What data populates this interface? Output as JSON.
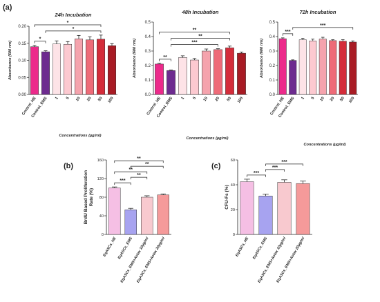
{
  "panel_labels": {
    "a": "(a)",
    "b": "(b)",
    "c": "(c)"
  },
  "chart_data": [
    {
      "type": "bar",
      "title": "24h Incubation",
      "xlabel": "Concentrations (µg/ml)",
      "ylabel": "Absorbance (600 nm)",
      "ylim": [
        0,
        0.2
      ],
      "yticks": [
        "0.00",
        "0.05",
        "0.10",
        "0.15",
        "0.20"
      ],
      "categories": [
        "Control_HE",
        "Control_EMS",
        "1",
        "5",
        "10",
        "20",
        "50",
        "100"
      ],
      "values": [
        0.14,
        0.125,
        0.148,
        0.147,
        0.163,
        0.16,
        0.162,
        0.143
      ],
      "errors": [
        0.004,
        0.003,
        0.009,
        0.008,
        0.01,
        0.009,
        0.012,
        0.006
      ],
      "colors": [
        "#ec2a8b",
        "#6d2b8f",
        "#fde3e7",
        "#fcc9d0",
        "#f5a3ad",
        "#ee6b78",
        "#d42c3a",
        "#a81b24"
      ],
      "significance": [
        {
          "from": "Control_HE",
          "to": "Control_EMS",
          "label": "*"
        },
        {
          "from": "Control_HE",
          "to": "50",
          "label": "*"
        },
        {
          "from": "Control_EMS",
          "to": "50",
          "label": "*"
        }
      ]
    },
    {
      "type": "bar",
      "title": "48h Incubation",
      "xlabel": "Concentrations (µg/ml)",
      "ylabel": "Absorbance (600 nm)",
      "ylim": [
        0,
        0.5
      ],
      "yticks": [
        "0.0",
        "0.1",
        "0.2",
        "0.3",
        "0.4",
        "0.5"
      ],
      "categories": [
        "Control_HE",
        "Control_EMS",
        "1",
        "5",
        "10",
        "20",
        "50",
        "100"
      ],
      "values": [
        0.21,
        0.165,
        0.255,
        0.238,
        0.3,
        0.31,
        0.322,
        0.285
      ],
      "errors": [
        0.005,
        0.004,
        0.012,
        0.01,
        0.014,
        0.006,
        0.012,
        0.008
      ],
      "colors": [
        "#ec2a8b",
        "#6d2b8f",
        "#fde3e7",
        "#fcc9d0",
        "#f5a3ad",
        "#ee6b78",
        "#d42c3a",
        "#a81b24"
      ],
      "significance": [
        {
          "from": "Control_HE",
          "to": "Control_EMS",
          "label": "**"
        },
        {
          "from": "Control_HE",
          "to": "50",
          "label": "**"
        },
        {
          "from": "Control_EMS",
          "to": "50",
          "label": "**"
        },
        {
          "from": "Control_EMS",
          "to": "20",
          "label": "***"
        }
      ]
    },
    {
      "type": "bar",
      "title": "72h Incubation",
      "xlabel": "Concentrations (µg/ml)",
      "ylabel": "Absorbance (600 nm)",
      "ylim": [
        0,
        0.5
      ],
      "yticks": [
        "0.0",
        "0.1",
        "0.2",
        "0.3",
        "0.4",
        "0.5"
      ],
      "categories": [
        "Control_HE",
        "Control_EMS",
        "1",
        "5",
        "10",
        "20",
        "50",
        "100"
      ],
      "values": [
        0.385,
        0.235,
        0.378,
        0.37,
        0.383,
        0.372,
        0.368,
        0.362
      ],
      "errors": [
        0.006,
        0.004,
        0.01,
        0.012,
        0.012,
        0.006,
        0.01,
        0.008
      ],
      "colors": [
        "#ec2a8b",
        "#6d2b8f",
        "#fde3e7",
        "#fcc9d0",
        "#f5a3ad",
        "#ee6b78",
        "#d42c3a",
        "#a81b24"
      ],
      "significance": [
        {
          "from": "Control_HE",
          "to": "Control_EMS",
          "label": "***"
        },
        {
          "from": "Control_EMS",
          "to": "100",
          "label": "***"
        }
      ]
    },
    {
      "type": "bar",
      "title": "",
      "xlabel": "",
      "ylabel": "BrdU Based Proliferation Rate (%)",
      "ylim": [
        0,
        160
      ],
      "yticks": [
        "0",
        "40",
        "80",
        "120",
        "160"
      ],
      "categories": [
        "EqASCs_HE",
        "EqASCs_EMS",
        "EqASCs_EMS+Astax 10µg/ml",
        "EqASCs_EMS+Astax 20µg/ml"
      ],
      "values": [
        100,
        53,
        80,
        85
      ],
      "errors": [
        2,
        3,
        3,
        2
      ],
      "colors": [
        "#f5bfe4",
        "#a7a3f0",
        "#f8c9cf",
        "#f59a9a"
      ],
      "significance": [
        {
          "from": "EqASCs_HE",
          "to": "EqASCs_EMS",
          "label": "***"
        },
        {
          "from": "EqASCs_HE",
          "to": "EqASCs_EMS+Astax 10µg/ml",
          "label": "**"
        },
        {
          "from": "EqASCs_HE",
          "to": "EqASCs_EMS+Astax 20µg/ml",
          "label": "**"
        },
        {
          "from": "EqASCs_EMS",
          "to": "EqASCs_EMS+Astax 10µg/ml",
          "label": "**"
        },
        {
          "from": "EqASCs_EMS",
          "to": "EqASCs_EMS+Astax 20µg/ml",
          "label": "**"
        }
      ]
    },
    {
      "type": "bar",
      "title": "",
      "xlabel": "",
      "ylabel": "CFU-Fs (%)",
      "ylim": [
        0,
        60
      ],
      "yticks": [
        "0",
        "20",
        "40",
        "60"
      ],
      "categories": [
        "EqASCs_HE",
        "EqASCs_EMS",
        "EqASCs_EMS+Astax 10µg/ml",
        "EqASCs_EMS+Astax 20µg/ml"
      ],
      "values": [
        42.5,
        31,
        42,
        41
      ],
      "errors": [
        2,
        1.5,
        2,
        2
      ],
      "colors": [
        "#f5bfe4",
        "#a7a3f0",
        "#f8c9cf",
        "#f59a9a"
      ],
      "significance": [
        {
          "from": "EqASCs_HE",
          "to": "EqASCs_EMS",
          "label": "***"
        },
        {
          "from": "EqASCs_EMS",
          "to": "EqASCs_EMS+Astax 10µg/ml",
          "label": "***"
        },
        {
          "from": "EqASCs_EMS",
          "to": "EqASCs_EMS+Astax 20µg/ml",
          "label": "***"
        }
      ]
    }
  ]
}
